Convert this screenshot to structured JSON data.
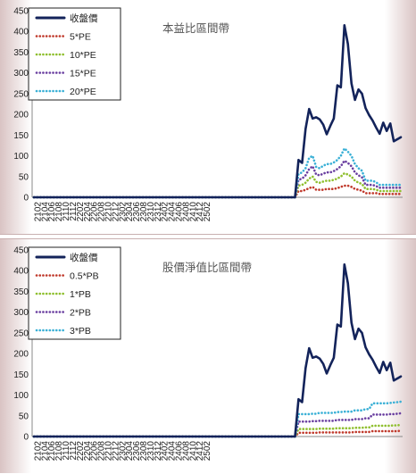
{
  "chart_data": [
    {
      "type": "line",
      "title": "本益比區間帶",
      "ylim": [
        0,
        450
      ],
      "yticks": [
        0,
        50,
        100,
        150,
        200,
        250,
        300,
        350,
        400,
        450
      ],
      "xtick_labels": [
        "2102",
        "2104",
        "2106",
        "2108",
        "2110",
        "2112",
        "2202",
        "2204",
        "2206",
        "2208",
        "2210",
        "2212",
        "2302",
        "2304",
        "2306",
        "2308",
        "2310",
        "2312",
        "2402",
        "2404",
        "2406",
        "2408",
        "2410",
        "2412",
        "2502"
      ],
      "x_start": "2101",
      "x_end": "2503",
      "legend_position": "top-left",
      "grid": false,
      "series": [
        {
          "name": "收盤價",
          "color": "#13235a",
          "style": "solid",
          "values": [
            0,
            0,
            0,
            0,
            0,
            0,
            0,
            0,
            0,
            0,
            0,
            0,
            0,
            0,
            0,
            0,
            0,
            0,
            0,
            0,
            0,
            0,
            0,
            0,
            0,
            0,
            0,
            0,
            0,
            0,
            0,
            0,
            0,
            0,
            0,
            0,
            0,
            0,
            0,
            0,
            0,
            0,
            0,
            0,
            0,
            0,
            0,
            0,
            0,
            0,
            0,
            0,
            0,
            0,
            0,
            0,
            0,
            0,
            0,
            0,
            0,
            0,
            0,
            0,
            0,
            0,
            0,
            0,
            0,
            0,
            0,
            0,
            0,
            0,
            0,
            90,
            83,
            165,
            213,
            190,
            193,
            188,
            175,
            152,
            172,
            190,
            270,
            265,
            415,
            370,
            275,
            235,
            260,
            250,
            215,
            198,
            185,
            168,
            153,
            180,
            160,
            178,
            135,
            140,
            145
          ]
        },
        {
          "name": "5*PE",
          "color": "#c0392b",
          "style": "dotted",
          "values": [
            0,
            0,
            0,
            0,
            0,
            0,
            0,
            0,
            0,
            0,
            0,
            0,
            0,
            0,
            0,
            0,
            0,
            0,
            0,
            0,
            0,
            0,
            0,
            0,
            0,
            0,
            0,
            0,
            0,
            0,
            0,
            0,
            0,
            0,
            0,
            0,
            0,
            0,
            0,
            0,
            0,
            0,
            0,
            0,
            0,
            0,
            0,
            0,
            0,
            0,
            0,
            0,
            0,
            0,
            0,
            0,
            0,
            0,
            0,
            0,
            0,
            0,
            0,
            0,
            0,
            0,
            0,
            0,
            0,
            0,
            0,
            0,
            0,
            0,
            0,
            15,
            15,
            18,
            22,
            25,
            18,
            18,
            18,
            20,
            20,
            20,
            22,
            25,
            28,
            28,
            25,
            20,
            18,
            16,
            10,
            10,
            10,
            10,
            8,
            8,
            8,
            8,
            8,
            8,
            8
          ]
        },
        {
          "name": "10*PE",
          "color": "#8fbf2f",
          "style": "dotted",
          "values": [
            0,
            0,
            0,
            0,
            0,
            0,
            0,
            0,
            0,
            0,
            0,
            0,
            0,
            0,
            0,
            0,
            0,
            0,
            0,
            0,
            0,
            0,
            0,
            0,
            0,
            0,
            0,
            0,
            0,
            0,
            0,
            0,
            0,
            0,
            0,
            0,
            0,
            0,
            0,
            0,
            0,
            0,
            0,
            0,
            0,
            0,
            0,
            0,
            0,
            0,
            0,
            0,
            0,
            0,
            0,
            0,
            0,
            0,
            0,
            0,
            0,
            0,
            0,
            0,
            0,
            0,
            0,
            0,
            0,
            0,
            0,
            0,
            0,
            0,
            0,
            28,
            30,
            35,
            45,
            50,
            37,
            35,
            38,
            40,
            40,
            42,
            45,
            50,
            58,
            55,
            50,
            40,
            35,
            32,
            20,
            20,
            20,
            18,
            15,
            15,
            15,
            15,
            15,
            15,
            15
          ]
        },
        {
          "name": "15*PE",
          "color": "#6a3fa0",
          "style": "dotted",
          "values": [
            0,
            0,
            0,
            0,
            0,
            0,
            0,
            0,
            0,
            0,
            0,
            0,
            0,
            0,
            0,
            0,
            0,
            0,
            0,
            0,
            0,
            0,
            0,
            0,
            0,
            0,
            0,
            0,
            0,
            0,
            0,
            0,
            0,
            0,
            0,
            0,
            0,
            0,
            0,
            0,
            0,
            0,
            0,
            0,
            0,
            0,
            0,
            0,
            0,
            0,
            0,
            0,
            0,
            0,
            0,
            0,
            0,
            0,
            0,
            0,
            0,
            0,
            0,
            0,
            0,
            0,
            0,
            0,
            0,
            0,
            0,
            0,
            0,
            0,
            0,
            42,
            45,
            53,
            68,
            75,
            55,
            53,
            57,
            60,
            60,
            63,
            68,
            75,
            88,
            83,
            75,
            60,
            53,
            48,
            30,
            30,
            30,
            27,
            23,
            23,
            23,
            23,
            23,
            23,
            23
          ]
        },
        {
          "name": "20*PE",
          "color": "#3ab0d6",
          "style": "dotted",
          "values": [
            0,
            0,
            0,
            0,
            0,
            0,
            0,
            0,
            0,
            0,
            0,
            0,
            0,
            0,
            0,
            0,
            0,
            0,
            0,
            0,
            0,
            0,
            0,
            0,
            0,
            0,
            0,
            0,
            0,
            0,
            0,
            0,
            0,
            0,
            0,
            0,
            0,
            0,
            0,
            0,
            0,
            0,
            0,
            0,
            0,
            0,
            0,
            0,
            0,
            0,
            0,
            0,
            0,
            0,
            0,
            0,
            0,
            0,
            0,
            0,
            0,
            0,
            0,
            0,
            0,
            0,
            0,
            0,
            0,
            0,
            0,
            0,
            0,
            0,
            0,
            56,
            60,
            70,
            95,
            100,
            73,
            70,
            76,
            80,
            80,
            84,
            90,
            100,
            118,
            110,
            100,
            80,
            70,
            64,
            40,
            40,
            40,
            36,
            30,
            30,
            30,
            30,
            30,
            30,
            30
          ]
        }
      ]
    },
    {
      "type": "line",
      "title": "股價淨值比區間帶",
      "ylim": [
        0,
        450
      ],
      "yticks": [
        0,
        50,
        100,
        150,
        200,
        250,
        300,
        350,
        400,
        450
      ],
      "xtick_labels": [
        "2102",
        "2104",
        "2106",
        "2108",
        "2110",
        "2112",
        "2202",
        "2204",
        "2206",
        "2208",
        "2210",
        "2212",
        "2302",
        "2304",
        "2306",
        "2308",
        "2310",
        "2312",
        "2402",
        "2404",
        "2406",
        "2408",
        "2410",
        "2412",
        "2502"
      ],
      "x_start": "2101",
      "x_end": "2503",
      "legend_position": "top-left",
      "grid": false,
      "series": [
        {
          "name": "收盤價",
          "color": "#13235a",
          "style": "solid",
          "values": [
            0,
            0,
            0,
            0,
            0,
            0,
            0,
            0,
            0,
            0,
            0,
            0,
            0,
            0,
            0,
            0,
            0,
            0,
            0,
            0,
            0,
            0,
            0,
            0,
            0,
            0,
            0,
            0,
            0,
            0,
            0,
            0,
            0,
            0,
            0,
            0,
            0,
            0,
            0,
            0,
            0,
            0,
            0,
            0,
            0,
            0,
            0,
            0,
            0,
            0,
            0,
            0,
            0,
            0,
            0,
            0,
            0,
            0,
            0,
            0,
            0,
            0,
            0,
            0,
            0,
            0,
            0,
            0,
            0,
            0,
            0,
            0,
            0,
            0,
            0,
            90,
            83,
            165,
            213,
            190,
            193,
            188,
            175,
            152,
            172,
            190,
            270,
            265,
            415,
            370,
            275,
            235,
            260,
            250,
            215,
            198,
            185,
            168,
            153,
            180,
            160,
            178,
            135,
            140,
            145
          ]
        },
        {
          "name": "0.5*PB",
          "color": "#c0392b",
          "style": "dotted",
          "values": [
            0,
            0,
            0,
            0,
            0,
            0,
            0,
            0,
            0,
            0,
            0,
            0,
            0,
            0,
            0,
            0,
            0,
            0,
            0,
            0,
            0,
            0,
            0,
            0,
            0,
            0,
            0,
            0,
            0,
            0,
            0,
            0,
            0,
            0,
            0,
            0,
            0,
            0,
            0,
            0,
            0,
            0,
            0,
            0,
            0,
            0,
            0,
            0,
            0,
            0,
            0,
            0,
            0,
            0,
            0,
            0,
            0,
            0,
            0,
            0,
            0,
            0,
            0,
            0,
            0,
            0,
            0,
            0,
            0,
            0,
            0,
            0,
            0,
            0,
            0,
            9,
            9,
            9,
            9,
            9,
            9,
            10,
            10,
            10,
            10,
            10,
            10,
            10,
            10,
            10,
            10,
            11,
            11,
            11,
            11,
            11,
            13,
            13,
            13,
            13,
            13,
            13,
            13,
            13,
            14
          ]
        },
        {
          "name": "1*PB",
          "color": "#8fbf2f",
          "style": "dotted",
          "values": [
            0,
            0,
            0,
            0,
            0,
            0,
            0,
            0,
            0,
            0,
            0,
            0,
            0,
            0,
            0,
            0,
            0,
            0,
            0,
            0,
            0,
            0,
            0,
            0,
            0,
            0,
            0,
            0,
            0,
            0,
            0,
            0,
            0,
            0,
            0,
            0,
            0,
            0,
            0,
            0,
            0,
            0,
            0,
            0,
            0,
            0,
            0,
            0,
            0,
            0,
            0,
            0,
            0,
            0,
            0,
            0,
            0,
            0,
            0,
            0,
            0,
            0,
            0,
            0,
            0,
            0,
            0,
            0,
            0,
            0,
            0,
            0,
            0,
            0,
            0,
            18,
            18,
            18,
            18,
            18,
            18,
            19,
            19,
            19,
            19,
            19,
            20,
            20,
            20,
            20,
            20,
            21,
            21,
            21,
            22,
            22,
            26,
            26,
            26,
            26,
            26,
            26,
            27,
            27,
            28
          ]
        },
        {
          "name": "2*PB",
          "color": "#6a3fa0",
          "style": "dotted",
          "values": [
            0,
            0,
            0,
            0,
            0,
            0,
            0,
            0,
            0,
            0,
            0,
            0,
            0,
            0,
            0,
            0,
            0,
            0,
            0,
            0,
            0,
            0,
            0,
            0,
            0,
            0,
            0,
            0,
            0,
            0,
            0,
            0,
            0,
            0,
            0,
            0,
            0,
            0,
            0,
            0,
            0,
            0,
            0,
            0,
            0,
            0,
            0,
            0,
            0,
            0,
            0,
            0,
            0,
            0,
            0,
            0,
            0,
            0,
            0,
            0,
            0,
            0,
            0,
            0,
            0,
            0,
            0,
            0,
            0,
            0,
            0,
            0,
            0,
            0,
            0,
            36,
            36,
            36,
            36,
            37,
            37,
            38,
            38,
            38,
            38,
            38,
            40,
            40,
            40,
            40,
            40,
            42,
            42,
            42,
            44,
            44,
            53,
            53,
            53,
            53,
            53,
            54,
            54,
            55,
            56
          ]
        },
        {
          "name": "3*PB",
          "color": "#3ab0d6",
          "style": "dotted",
          "values": [
            0,
            0,
            0,
            0,
            0,
            0,
            0,
            0,
            0,
            0,
            0,
            0,
            0,
            0,
            0,
            0,
            0,
            0,
            0,
            0,
            0,
            0,
            0,
            0,
            0,
            0,
            0,
            0,
            0,
            0,
            0,
            0,
            0,
            0,
            0,
            0,
            0,
            0,
            0,
            0,
            0,
            0,
            0,
            0,
            0,
            0,
            0,
            0,
            0,
            0,
            0,
            0,
            0,
            0,
            0,
            0,
            0,
            0,
            0,
            0,
            0,
            0,
            0,
            0,
            0,
            0,
            0,
            0,
            0,
            0,
            0,
            0,
            0,
            0,
            0,
            54,
            54,
            54,
            54,
            55,
            55,
            57,
            57,
            57,
            57,
            57,
            59,
            59,
            60,
            60,
            60,
            63,
            63,
            63,
            66,
            66,
            80,
            80,
            80,
            80,
            80,
            81,
            82,
            83,
            84
          ]
        }
      ]
    }
  ]
}
